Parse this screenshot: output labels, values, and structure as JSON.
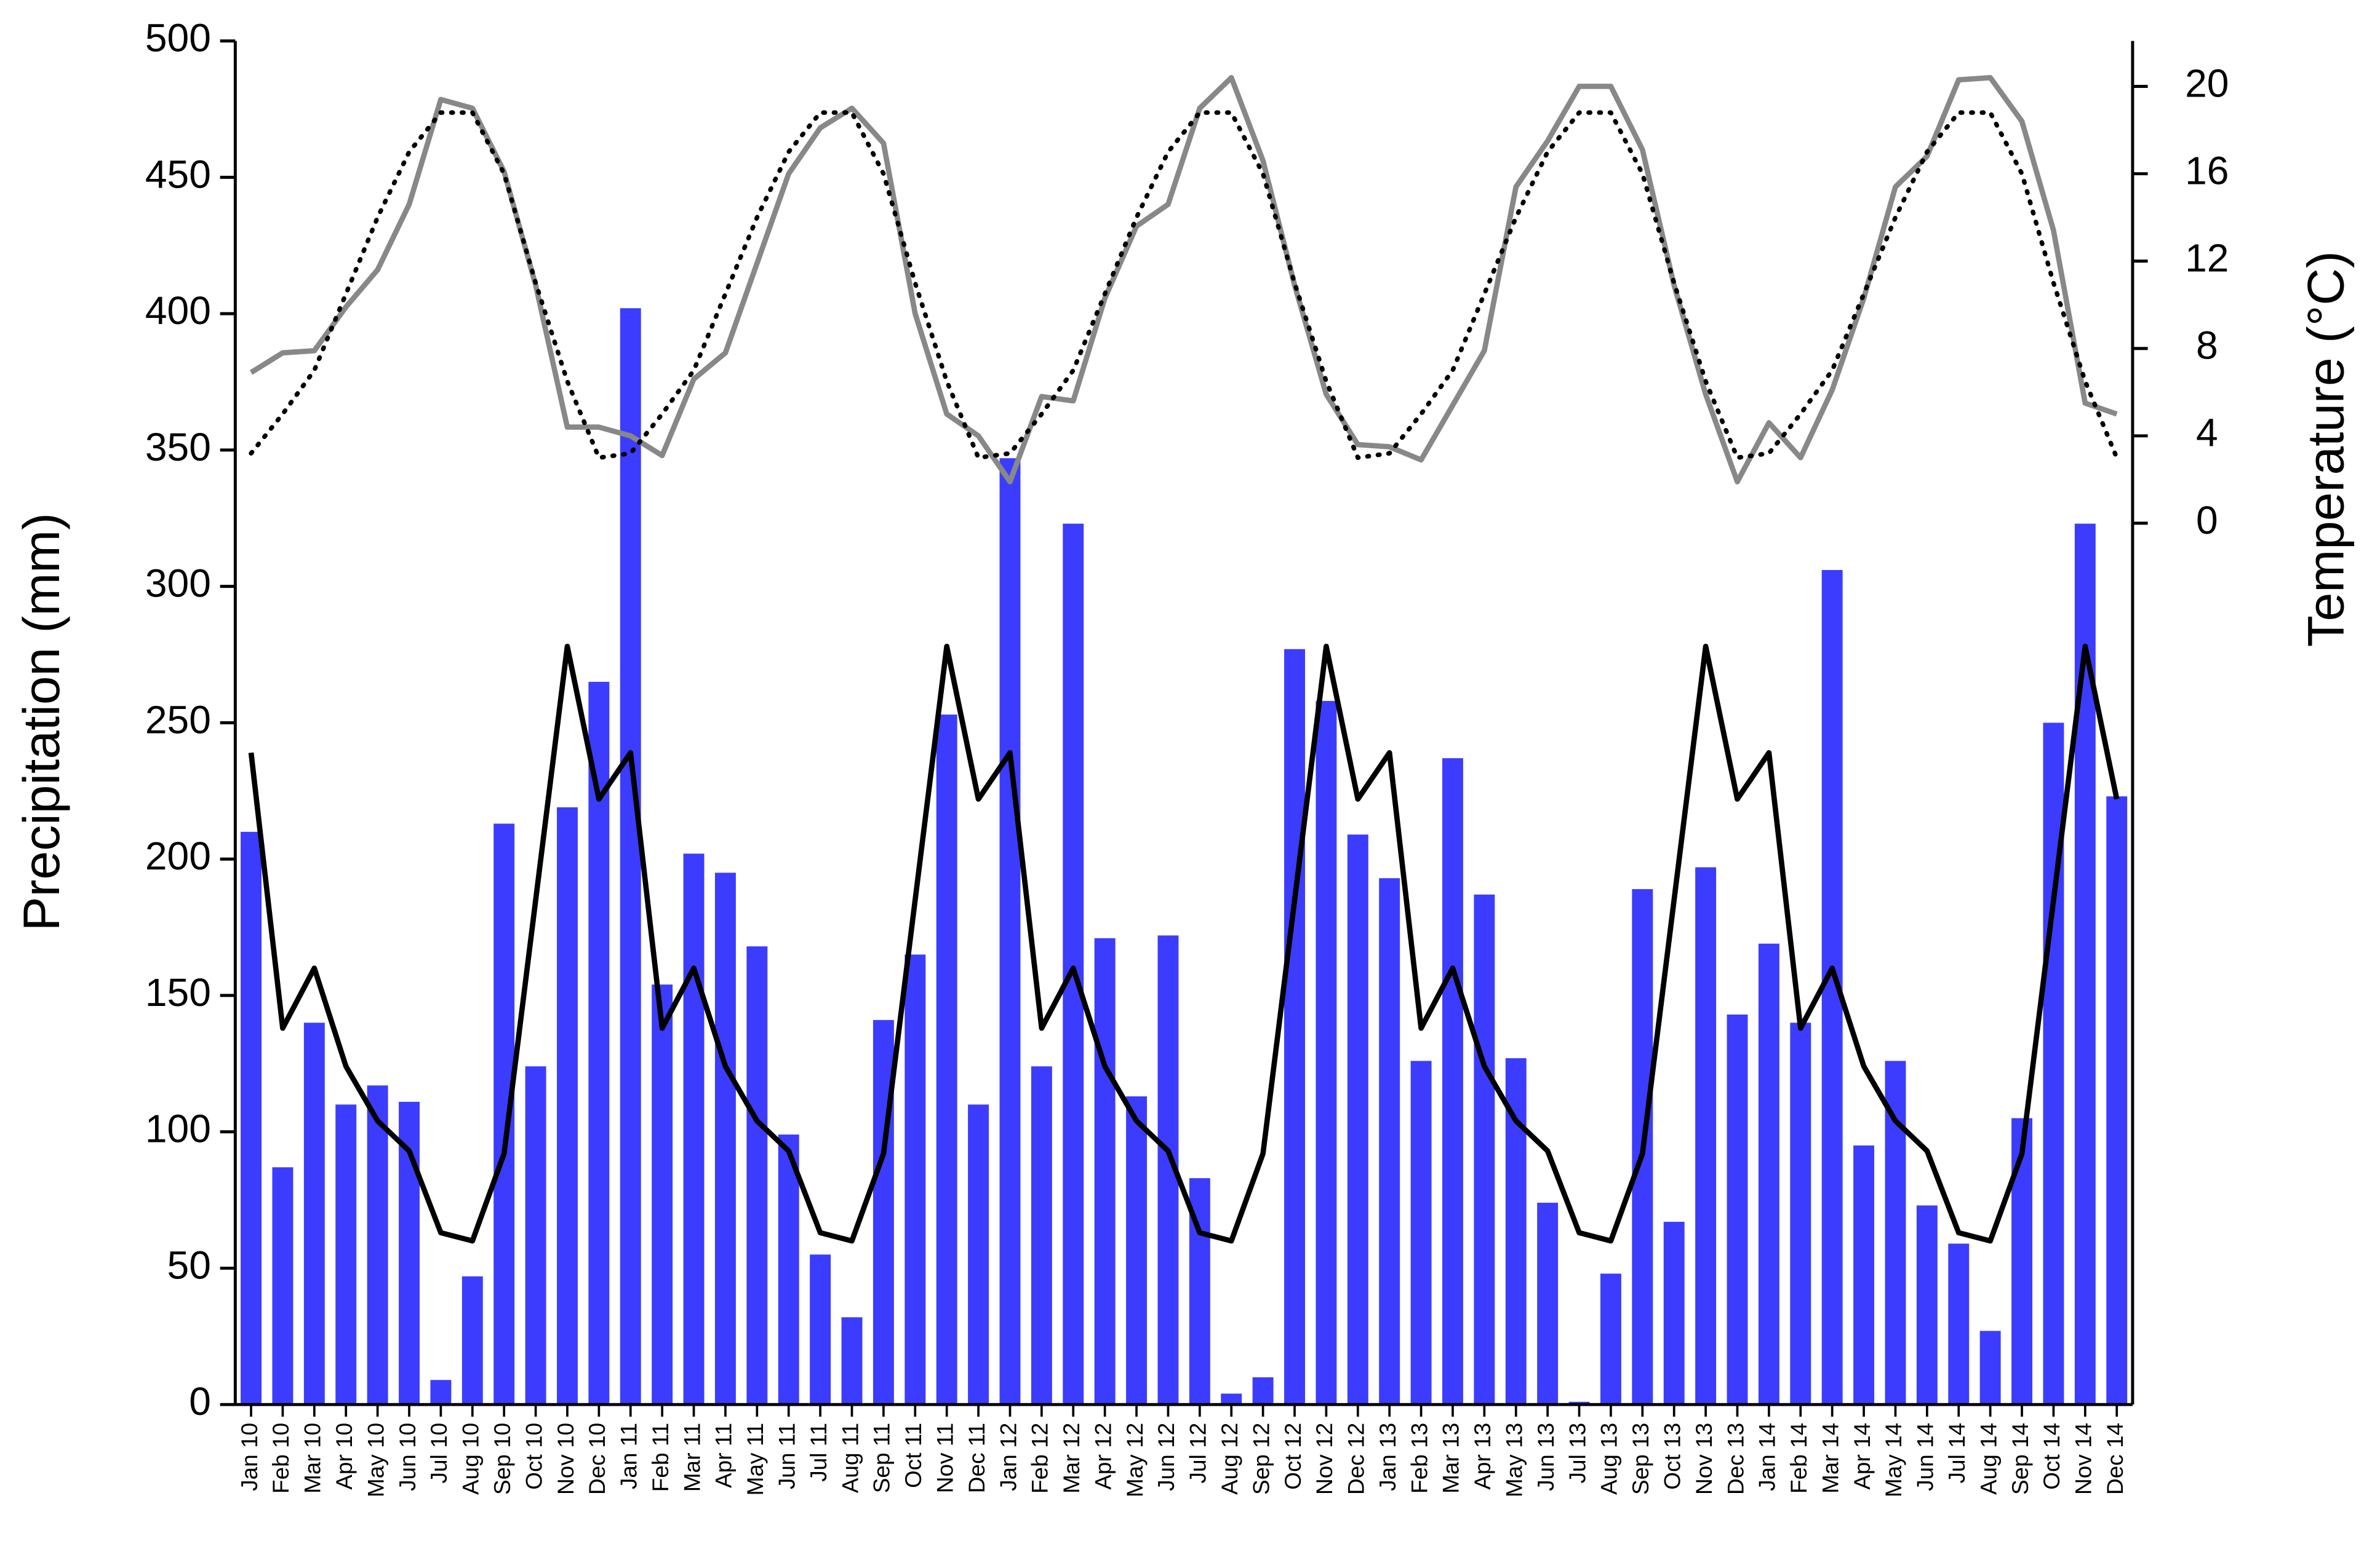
{
  "chart_data": {
    "type": "bar",
    "y_label": "Precipitation (mm)",
    "y2_label": "Temperature (°C)",
    "categories": [
      "Jan 10",
      "Feb 10",
      "Mar 10",
      "Apr 10",
      "May 10",
      "Jun 10",
      "Jul 10",
      "Aug 10",
      "Sep 10",
      "Oct 10",
      "Nov 10",
      "Dec 10",
      "Jan 11",
      "Feb 11",
      "Mar 11",
      "Apr 11",
      "May 11",
      "Jun 11",
      "Jul 11",
      "Aug 11",
      "Sep 11",
      "Oct 11",
      "Nov 11",
      "Dec 11",
      "Jan 12",
      "Feb 12",
      "Mar 12",
      "Apr 12",
      "May 12",
      "Jun 12",
      "Jul 12",
      "Aug 12",
      "Sep 12",
      "Oct 12",
      "Nov 12",
      "Dec 12",
      "Jan 13",
      "Feb 13",
      "Mar 13",
      "Apr 13",
      "May 13",
      "Jun 13",
      "Jul 13",
      "Aug 13",
      "Sep 13",
      "Oct 13",
      "Nov 13",
      "Dec 13",
      "Jan 14",
      "Feb 14",
      "Mar 14",
      "Apr 14",
      "May 14",
      "Jun 14",
      "Jul 14",
      "Aug 14",
      "Sep 14",
      "Oct 14",
      "Nov 14",
      "Dec 14"
    ],
    "series": [
      {
        "type": "bar",
        "color": "#3c3cff",
        "values": [
          210,
          87,
          140,
          110,
          117,
          111,
          9,
          47,
          213,
          124,
          219,
          265,
          402,
          154,
          202,
          195,
          168,
          99,
          55,
          32,
          141,
          165,
          253,
          110,
          347,
          124,
          323,
          171,
          113,
          172,
          83,
          4,
          10,
          277,
          258,
          209,
          193,
          126,
          237,
          187,
          127,
          74,
          1,
          48,
          189,
          67,
          197,
          143,
          169,
          140,
          306,
          95,
          126,
          73,
          59,
          27,
          105,
          250,
          323,
          223
        ]
      },
      {
        "type": "line",
        "color": "#000000",
        "values": [
          239,
          138,
          160,
          124,
          104,
          93,
          63,
          60,
          92,
          185,
          278,
          222,
          239,
          138,
          160,
          124,
          104,
          93,
          63,
          60,
          92,
          185,
          278,
          222,
          239,
          138,
          160,
          124,
          104,
          93,
          63,
          60,
          92,
          185,
          278,
          222,
          239,
          138,
          160,
          124,
          104,
          93,
          63,
          60,
          92,
          185,
          278,
          222,
          239,
          138,
          160,
          124,
          104,
          93,
          63,
          60,
          92,
          185,
          278,
          222
        ]
      },
      {
        "type": "line",
        "color": "#888888",
        "axis": "y2",
        "values": [
          6.9,
          7.8,
          7.9,
          9.9,
          11.6,
          14.6,
          19.4,
          19.0,
          16.1,
          10.9,
          4.4,
          4.4,
          4.0,
          3.1,
          6.6,
          7.8,
          11.9,
          16.0,
          18.1,
          19.0,
          17.4,
          9.6,
          5.0,
          4.0,
          1.9,
          5.8,
          5.6,
          10.3,
          13.6,
          14.6,
          19.0,
          20.4,
          16.6,
          10.9,
          5.9,
          3.6,
          3.5,
          2.9,
          5.4,
          7.9,
          15.4,
          17.5,
          20.0,
          20.0,
          17.1,
          10.9,
          5.9,
          1.9,
          4.6,
          3.0,
          6.1,
          10.3,
          15.4,
          16.8,
          20.3,
          20.4,
          18.4,
          13.4,
          5.5,
          5.0
        ]
      },
      {
        "type": "line",
        "color": "#000000",
        "dash": "dotted",
        "axis": "y2",
        "values": [
          3.2,
          5.0,
          7.0,
          10.5,
          14.0,
          17.0,
          18.8,
          18.8,
          16.0,
          11.0,
          6.5,
          3.0,
          3.2,
          5.0,
          7.0,
          10.5,
          14.0,
          17.0,
          18.8,
          18.8,
          16.0,
          11.0,
          6.5,
          3.0,
          3.2,
          5.0,
          7.0,
          10.5,
          14.0,
          17.0,
          18.8,
          18.8,
          16.0,
          11.0,
          6.5,
          3.0,
          3.2,
          5.0,
          7.0,
          10.5,
          14.0,
          17.0,
          18.8,
          18.8,
          16.0,
          11.0,
          6.5,
          3.0,
          3.2,
          5.0,
          7.0,
          10.5,
          14.0,
          17.0,
          18.8,
          18.8,
          16.0,
          11.0,
          6.5,
          3.0
        ]
      }
    ],
    "ylim": [
      0,
      500
    ],
    "yticks": [
      0,
      50,
      100,
      150,
      200,
      250,
      300,
      350,
      400,
      450,
      500
    ],
    "y2lim": [
      -40.35,
      22.08
    ],
    "y2ticks": [
      0,
      4,
      8,
      12,
      16,
      20
    ],
    "grid": false
  }
}
